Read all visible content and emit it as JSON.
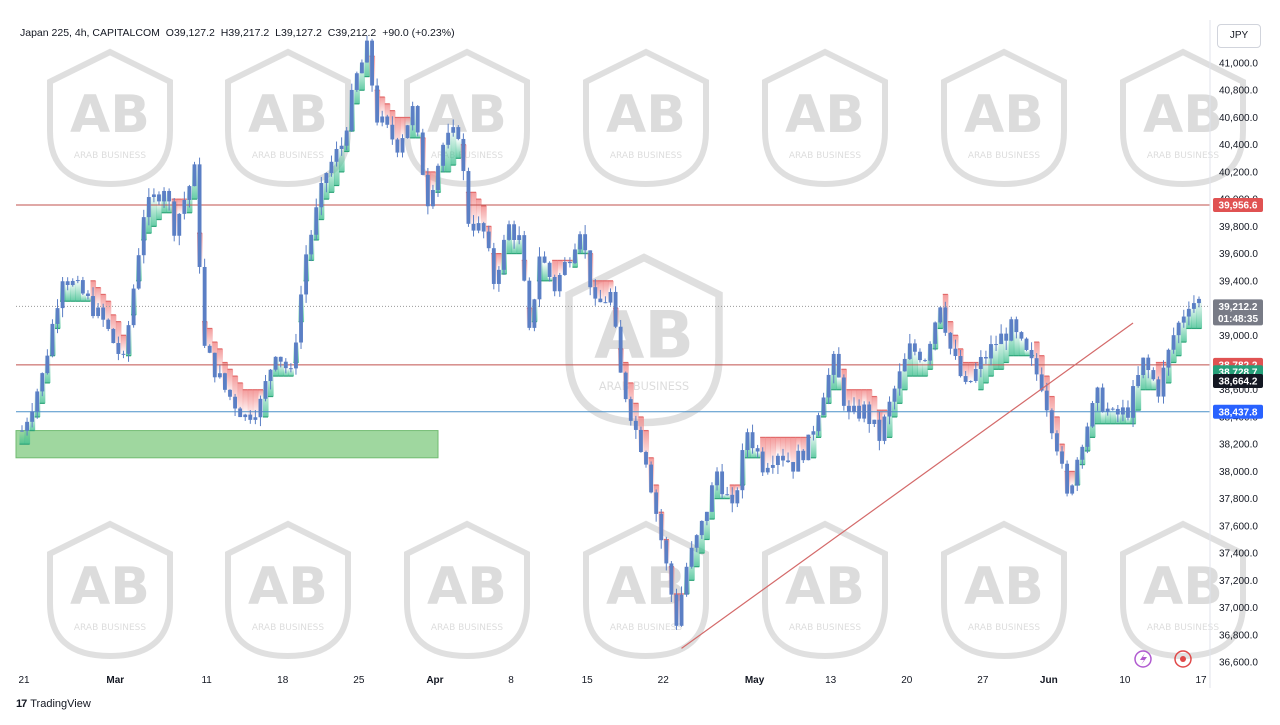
{
  "header": {
    "symbol": "Japan 225, 4h, CAPITALCOM",
    "open": "O39,127.2",
    "high": "H39,217.2",
    "low": "L39,127.2",
    "close": "C39,212.2",
    "change": "+90.0 (+0.23%)"
  },
  "currency_label": "JPY",
  "branding": {
    "logo_glyph": "17",
    "name": "TradingView"
  },
  "watermark": {
    "text": "ARAB BUSINESS",
    "monogram": "AB"
  },
  "colors": {
    "candle": "#5b7fc5",
    "resistance": "#c0504d",
    "support_line": "#4a90c8",
    "supertrend_bear": "#f09090",
    "supertrend_bull": "#5fc8a0",
    "demand_zone": "#8fd18f",
    "trendline": "#d46a6a"
  },
  "chart_data": {
    "type": "candlestick",
    "title": "Japan 225, 4h, CAPITALCOM",
    "y_axis": {
      "range": [
        36500,
        41150
      ],
      "ticks": [
        "41,000.0",
        "40,800.0",
        "40,600.0",
        "40,400.0",
        "40,200.0",
        "40,000.0",
        "39,800.0",
        "39,600.0",
        "39,400.0",
        "39,200.0",
        "39,000.0",
        "38,800.0",
        "38,600.0",
        "38,400.0",
        "38,200.0",
        "38,000.0",
        "37,800.0",
        "37,600.0",
        "37,400.0",
        "37,200.0",
        "37,000.0",
        "36,800.0",
        "36,600.0"
      ],
      "tick_values": [
        41000,
        40800,
        40600,
        40400,
        40200,
        40000,
        39800,
        39600,
        39400,
        39200,
        39000,
        38800,
        38600,
        38400,
        38200,
        38000,
        37800,
        37600,
        37400,
        37200,
        37000,
        36800,
        36600
      ]
    },
    "x_axis": {
      "labels": [
        "21",
        "Mar",
        "11",
        "18",
        "25",
        "Apr",
        "8",
        "15",
        "22",
        "May",
        "13",
        "20",
        "27",
        "Jun",
        "10",
        "17"
      ],
      "bold_labels": [
        "Mar",
        "Apr",
        "May",
        "Jun"
      ],
      "label_bars": [
        0,
        18,
        36,
        51,
        66,
        81,
        96,
        111,
        126,
        144,
        159,
        174,
        189,
        202,
        217,
        232
      ]
    },
    "price_tags": [
      {
        "label": "39,956.6",
        "value": 39956.6,
        "color": "#e05252"
      },
      {
        "label": "39,212.2",
        "value": 39212.2,
        "color": "#787b86",
        "sub": "01:48:35"
      },
      {
        "label": "38,782.2",
        "value": 38782.2,
        "color": "#e05252"
      },
      {
        "label": "38,728.7",
        "value": 38728.7,
        "color": "#26a07a"
      },
      {
        "label": "38,664.2",
        "value": 38664.2,
        "color": "#131722"
      },
      {
        "label": "38,437.8",
        "value": 38437.8,
        "color": "#2962ff"
      }
    ],
    "horizontal_lines": [
      {
        "value": 39956.6,
        "style": "solid",
        "color": "#c0504d"
      },
      {
        "value": 38782.2,
        "style": "solid",
        "color": "#c0504d"
      },
      {
        "value": 38437.8,
        "style": "solid",
        "color": "#4a90c8"
      },
      {
        "value": 39212.2,
        "style": "dotted",
        "color": "#999999"
      }
    ],
    "demand_zone": {
      "from_bar": 0,
      "to_bar": 82,
      "low": 38100,
      "high": 38300
    },
    "trendline": {
      "from": [
        130,
        36700
      ],
      "to": [
        219,
        39090
      ]
    },
    "series_points": [
      [
        0,
        38300
      ],
      [
        4,
        38700
      ],
      [
        8,
        39450
      ],
      [
        12,
        39300
      ],
      [
        16,
        39100
      ],
      [
        20,
        38800
      ],
      [
        24,
        39900
      ],
      [
        28,
        40100
      ],
      [
        30,
        39800
      ],
      [
        34,
        40200
      ],
      [
        36,
        38900
      ],
      [
        40,
        38600
      ],
      [
        44,
        38400
      ],
      [
        47,
        38500
      ],
      [
        50,
        38900
      ],
      [
        53,
        38700
      ],
      [
        56,
        39600
      ],
      [
        60,
        40200
      ],
      [
        63,
        40400
      ],
      [
        66,
        40900
      ],
      [
        68,
        41100
      ],
      [
        70,
        40600
      ],
      [
        74,
        40400
      ],
      [
        77,
        40650
      ],
      [
        80,
        40000
      ],
      [
        83,
        40400
      ],
      [
        86,
        40500
      ],
      [
        88,
        39850
      ],
      [
        91,
        39750
      ],
      [
        93,
        39400
      ],
      [
        96,
        39800
      ],
      [
        98,
        39700
      ],
      [
        100,
        39000
      ],
      [
        102,
        39600
      ],
      [
        105,
        39350
      ],
      [
        108,
        39600
      ],
      [
        110,
        39800
      ],
      [
        113,
        39200
      ],
      [
        116,
        39300
      ],
      [
        118,
        38700
      ],
      [
        121,
        38300
      ],
      [
        123,
        38100
      ],
      [
        125,
        37700
      ],
      [
        127,
        37300
      ],
      [
        129,
        36900
      ],
      [
        131,
        37300
      ],
      [
        134,
        37600
      ],
      [
        137,
        38000
      ],
      [
        140,
        37700
      ],
      [
        143,
        38300
      ],
      [
        146,
        38050
      ],
      [
        149,
        38150
      ],
      [
        152,
        38050
      ],
      [
        155,
        38200
      ],
      [
        158,
        38600
      ],
      [
        160,
        38800
      ],
      [
        163,
        38400
      ],
      [
        166,
        38450
      ],
      [
        169,
        38250
      ],
      [
        172,
        38600
      ],
      [
        175,
        38900
      ],
      [
        178,
        38850
      ],
      [
        181,
        39250
      ],
      [
        183,
        38900
      ],
      [
        186,
        38600
      ],
      [
        189,
        38800
      ],
      [
        192,
        38950
      ],
      [
        195,
        39050
      ],
      [
        198,
        38850
      ],
      [
        201,
        38650
      ],
      [
        204,
        38200
      ],
      [
        206,
        37800
      ],
      [
        209,
        38250
      ],
      [
        212,
        38550
      ],
      [
        215,
        38400
      ],
      [
        218,
        38450
      ],
      [
        221,
        38800
      ],
      [
        224,
        38600
      ],
      [
        227,
        39000
      ],
      [
        230,
        39250
      ]
    ]
  }
}
